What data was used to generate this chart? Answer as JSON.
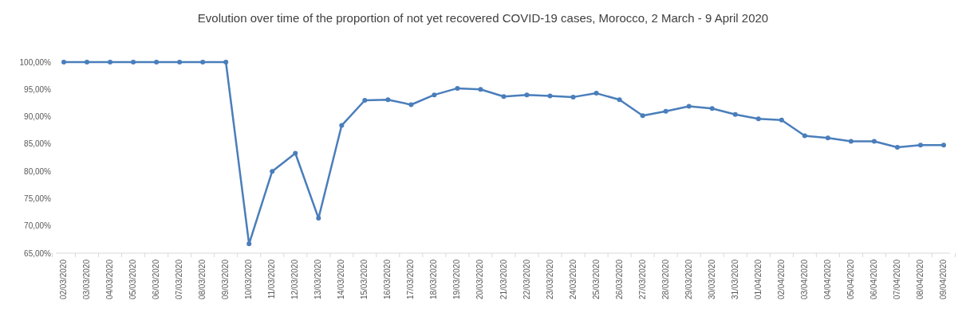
{
  "chart_data": {
    "type": "line",
    "title": "Evolution over time of the proportion of not yet recovered COVID-19 cases, Morocco, 2 March - 9 April 2020",
    "categories": [
      "02/03/2020",
      "03/03/2020",
      "04/03/2020",
      "05/03/2020",
      "06/03/2020",
      "07/03/2020",
      "08/03/2020",
      "09/03/2020",
      "10/03/2020",
      "11/03/2020",
      "12/03/2020",
      "13/03/2020",
      "14/03/2020",
      "15/03/2020",
      "16/03/2020",
      "17/03/2020",
      "18/03/2020",
      "19/03/2020",
      "20/03/2020",
      "21/03/2020",
      "22/03/2020",
      "23/03/2020",
      "24/03/2020",
      "25/03/2020",
      "26/03/2020",
      "27/03/2020",
      "28/03/2020",
      "29/03/2020",
      "30/03/2020",
      "31/03/2020",
      "01/04/2020",
      "02/04/2020",
      "03/04/2020",
      "04/04/2020",
      "05/04/2020",
      "06/04/2020",
      "07/04/2020",
      "08/04/2020",
      "09/04/2020"
    ],
    "series": [
      {
        "color": "#4a7ebb",
        "values": [
          100,
          100,
          100,
          100,
          100,
          100,
          100,
          100,
          66.7,
          80.0,
          83.3,
          71.4,
          88.4,
          93.0,
          93.1,
          92.2,
          94.0,
          95.2,
          95.0,
          93.7,
          94.0,
          93.8,
          93.6,
          94.3,
          93.1,
          90.2,
          91.0,
          91.9,
          91.5,
          90.4,
          89.6,
          89.4,
          86.5,
          86.1,
          85.5,
          85.5,
          84.4,
          84.8,
          84.8
        ]
      }
    ],
    "ylim": [
      65,
      100
    ],
    "yticks": [
      {
        "value": 65,
        "label": "65,00%"
      },
      {
        "value": 70,
        "label": "70,00%"
      },
      {
        "value": 75,
        "label": "75,00%"
      },
      {
        "value": 80,
        "label": "80,00%"
      },
      {
        "value": 85,
        "label": "85,00%"
      },
      {
        "value": 90,
        "label": "90,00%"
      },
      {
        "value": 95,
        "label": "95,00%"
      },
      {
        "value": 100,
        "label": "100,00%"
      }
    ],
    "marker": "circle",
    "line_style": "solid",
    "grid": false,
    "legend": false
  }
}
